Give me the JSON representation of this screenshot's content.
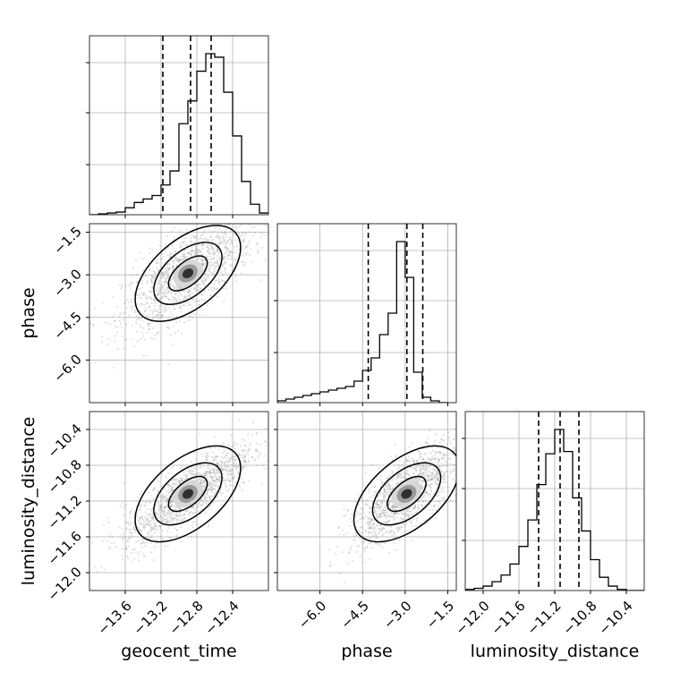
{
  "chart_data": {
    "type": "corner",
    "parameters": [
      "geocent_time",
      "phase",
      "luminosity_distance"
    ],
    "axis_labels": [
      "geocent_time",
      "phase",
      "luminosity_distance"
    ],
    "ranges": [
      [
        -14.0,
        -12.0
      ],
      [
        -7.5,
        -1.2
      ],
      [
        -12.2,
        -10.2
      ]
    ],
    "ticks": [
      [
        "−13.6",
        "−13.2",
        "−12.8",
        "−12.4"
      ],
      [
        "−6.0",
        "−4.5",
        "−3.0",
        "−1.5"
      ],
      [
        "−12.0",
        "−11.6",
        "−11.2",
        "−10.8",
        "−10.4"
      ]
    ],
    "tick_values": [
      [
        -13.6,
        -13.2,
        -12.8,
        -12.4
      ],
      [
        -6.0,
        -4.5,
        -3.0,
        -1.5
      ],
      [
        -12.0,
        -11.6,
        -11.2,
        -10.8,
        -10.4
      ]
    ],
    "quantiles": [
      [
        -13.18,
        -12.87,
        -12.64
      ],
      [
        -4.3,
        -2.94,
        -2.38
      ],
      [
        -11.38,
        -11.14,
        -10.93
      ]
    ],
    "histograms": [
      {
        "bin_edges_start": -14.0,
        "bin_width": 0.1,
        "counts": [
          0.0,
          0.5,
          1.0,
          1.5,
          4.0,
          7.0,
          9.0,
          11.0,
          17.0,
          25.0,
          52.0,
          65.0,
          82.0,
          92.0,
          90.0,
          70.0,
          45.0,
          19.0,
          6.0,
          1.0
        ]
      },
      {
        "bin_edges_start": -7.5,
        "bin_width": 0.3,
        "counts": [
          1.0,
          2.0,
          3.0,
          4.0,
          5.0,
          6.0,
          7.0,
          8.0,
          9.0,
          12.0,
          18.0,
          25.0,
          38.0,
          50.0,
          90.0,
          70.0,
          17.0,
          3.0,
          1.0,
          0.0
        ]
      },
      {
        "bin_edges_start": -12.2,
        "bin_width": 0.1,
        "counts": [
          0.5,
          1.0,
          2.0,
          4.0,
          7.0,
          12.0,
          20.0,
          32.0,
          48.0,
          62.0,
          73.0,
          63.0,
          42.0,
          27.0,
          14.0,
          6.0,
          2.0,
          0.5,
          0.0,
          0.0
        ]
      }
    ],
    "correlations": {
      "0_1": 0.7,
      "0_2": 0.82,
      "1_2": 0.74
    },
    "marginal_modes": [
      -12.9,
      -2.95,
      -11.12
    ],
    "marginal_sigmas": [
      0.28,
      0.75,
      0.22
    ],
    "grid": true,
    "contour_levels": 3,
    "colors": {
      "scatter": "#9a9a9a",
      "contour": "#000000",
      "grid": "#b0b0b0",
      "hist": "#000000"
    }
  }
}
